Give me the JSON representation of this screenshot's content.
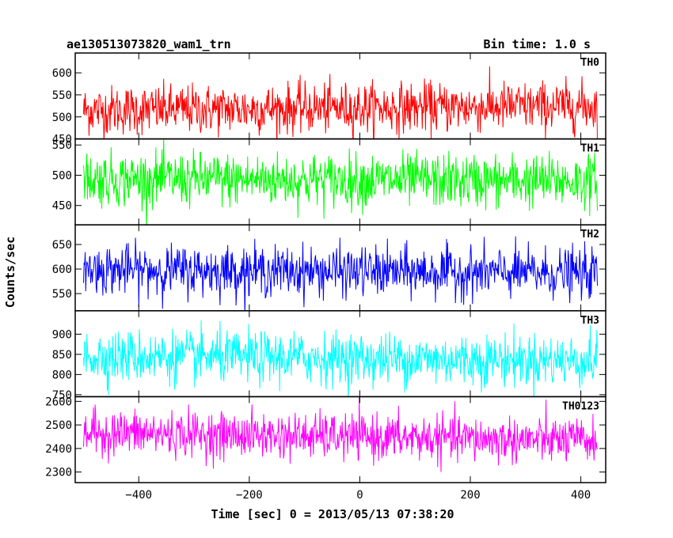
{
  "header": {
    "title": "ae130513073820_wam1_trn",
    "bin_time": "Bin time: 1.0 s"
  },
  "chart_data": {
    "type": "line",
    "xlabel": "Time [sec] 0 = 2013/05/13 07:38:20",
    "ylabel": "Counts/sec",
    "xlim": [
      -515,
      445
    ],
    "x_range": [
      -500,
      430
    ],
    "x_ticks": [
      -400,
      -200,
      0,
      200,
      400
    ],
    "x_tick_labels": [
      "−400",
      "−200",
      "0",
      "200",
      "400"
    ],
    "panels": [
      {
        "name": "TH0",
        "color": "#ff0000",
        "ylim": [
          450,
          645
        ],
        "y_ticks": [
          450,
          500,
          550,
          600
        ],
        "y_tick_labels": [
          "450",
          "500",
          "550",
          "600"
        ],
        "mean": 520,
        "spread": 28,
        "trend": 5
      },
      {
        "name": "TH1",
        "color": "#00ff00",
        "ylim": [
          418,
          560
        ],
        "y_ticks": [
          450,
          500,
          550
        ],
        "y_tick_labels": [
          "450",
          "500",
          "550"
        ],
        "mean": 492,
        "spread": 22,
        "trend": -2
      },
      {
        "name": "TH2",
        "color": "#0000ff",
        "ylim": [
          515,
          690
        ],
        "y_ticks": [
          550,
          600,
          650
        ],
        "y_tick_labels": [
          "550",
          "600",
          "650"
        ],
        "mean": 595,
        "spread": 25,
        "trend": -4
      },
      {
        "name": "TH3",
        "color": "#00ffff",
        "ylim": [
          745,
          958
        ],
        "y_ticks": [
          750,
          800,
          850,
          900
        ],
        "y_tick_labels": [
          "750",
          "800",
          "850",
          "900"
        ],
        "mean": 840,
        "spread": 32,
        "trend": -6
      },
      {
        "name": "TH0123",
        "color": "#ff00ff",
        "ylim": [
          2255,
          2620
        ],
        "y_ticks": [
          2300,
          2400,
          2500,
          2600
        ],
        "y_tick_labels": [
          "2300",
          "2400",
          "2500",
          "2600"
        ],
        "mean": 2450,
        "spread": 48,
        "trend": -18
      }
    ]
  }
}
